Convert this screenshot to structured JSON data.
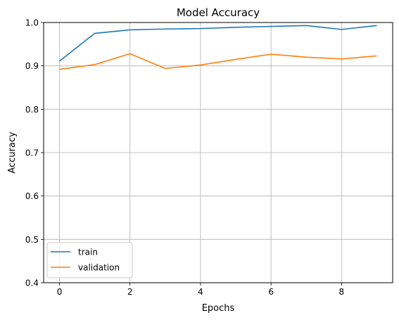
{
  "chart_data": {
    "type": "line",
    "title": "Model Accuracy",
    "xlabel": "Epochs",
    "ylabel": "Accuracy",
    "x": [
      0,
      1,
      2,
      3,
      4,
      5,
      6,
      7,
      8,
      9
    ],
    "xlim": [
      -0.45,
      9.45
    ],
    "ylim": [
      0.4,
      1.0
    ],
    "xticks": [
      0,
      2,
      4,
      6,
      8
    ],
    "yticks": [
      0.4,
      0.5,
      0.6,
      0.7,
      0.8,
      0.9,
      1.0
    ],
    "xtick_labels": [
      "0",
      "2",
      "4",
      "6",
      "8"
    ],
    "ytick_labels": [
      "0.4",
      "0.5",
      "0.6",
      "0.7",
      "0.8",
      "0.9",
      "1.0"
    ],
    "grid": true,
    "legend_position": "lower-left",
    "series": [
      {
        "name": "train",
        "color": "#1f77b4",
        "values": [
          0.911,
          0.975,
          0.983,
          0.985,
          0.986,
          0.989,
          0.991,
          0.993,
          0.984,
          0.993
        ]
      },
      {
        "name": "validation",
        "color": "#ff7f0e",
        "values": [
          0.892,
          0.903,
          0.928,
          0.894,
          0.902,
          0.915,
          0.927,
          0.92,
          0.916,
          0.923
        ]
      }
    ]
  }
}
